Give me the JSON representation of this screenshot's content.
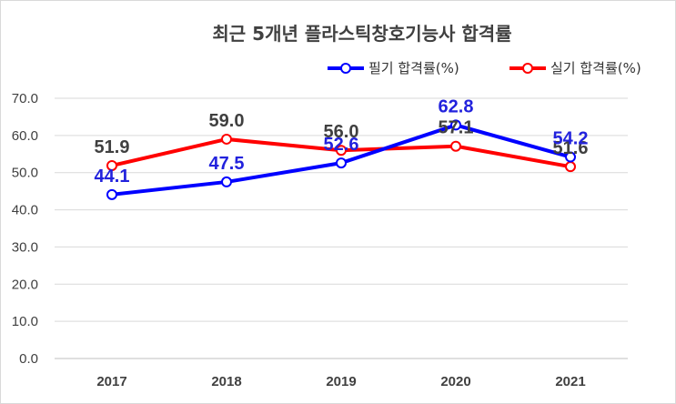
{
  "chart_data": {
    "type": "line",
    "title": "최근 5개년 플라스틱창호기능사 합격률",
    "categories": [
      "2017",
      "2018",
      "2019",
      "2020",
      "2021"
    ],
    "ylim": [
      0,
      70
    ],
    "yticks": [
      "0.0",
      "10.0",
      "20.0",
      "30.0",
      "40.0",
      "50.0",
      "60.0",
      "70.0"
    ],
    "grid": true,
    "legend_position": "top-right",
    "series": [
      {
        "name": "필기 합격률(%)",
        "color": "#0000ff",
        "label_color": "#2222dd",
        "values": [
          44.1,
          47.5,
          52.6,
          62.8,
          54.2
        ],
        "labels": [
          "44.1",
          "47.5",
          "52.6",
          "62.8",
          "54.2"
        ]
      },
      {
        "name": "실기 합격률(%)",
        "color": "#ff0000",
        "label_color": "#404040",
        "values": [
          51.9,
          59.0,
          56.0,
          57.1,
          51.6
        ],
        "labels": [
          "51.9",
          "59.0",
          "56.0",
          "57.1",
          "51.6"
        ]
      }
    ]
  }
}
